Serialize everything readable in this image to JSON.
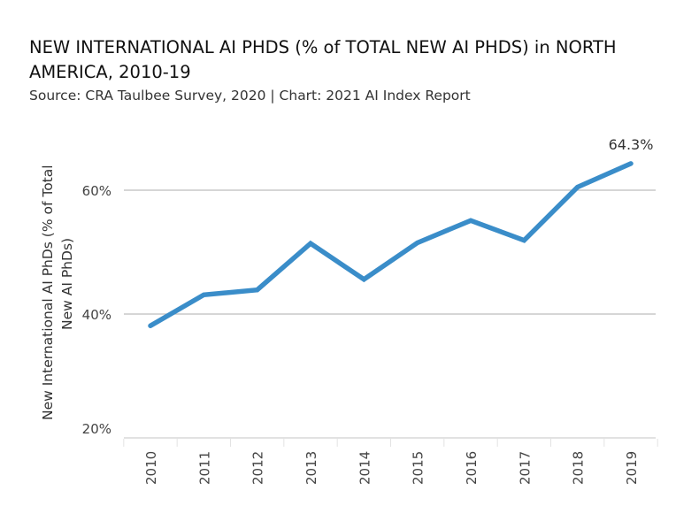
{
  "chart_data": {
    "type": "line",
    "title": "NEW INTERNATIONAL AI PHDS (% of TOTAL NEW AI PHDS) in NORTH AMERICA, 2010-19",
    "subtitle": "Source: CRA Taulbee Survey, 2020 | Chart: 2021 AI Index Report",
    "xlabel": "",
    "ylabel_line1": "New International AI PhDs (% of Total",
    "ylabel_line2": "New AI PhDs)",
    "categories": [
      "2010",
      "2011",
      "2012",
      "2013",
      "2014",
      "2015",
      "2016",
      "2017",
      "2018",
      "2019"
    ],
    "series": [
      {
        "name": "New International AI PhDs (% of Total New AI PhDs)",
        "color": "#3a8dc9",
        "values": [
          38.1,
          43.1,
          43.9,
          51.4,
          45.6,
          51.5,
          55.1,
          51.9,
          60.5,
          64.3
        ]
      }
    ],
    "annotation": "64.3%",
    "yticks": [
      20,
      40,
      60
    ],
    "ytick_labels": [
      "20%",
      "40%",
      "60%"
    ],
    "ylim": [
      20,
      70
    ],
    "grid": true
  }
}
